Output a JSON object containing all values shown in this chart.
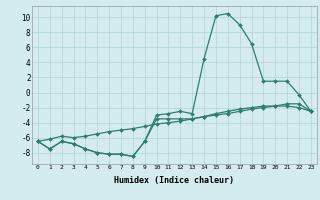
{
  "xlabel": "Humidex (Indice chaleur)",
  "x_values": [
    0,
    1,
    2,
    3,
    4,
    5,
    6,
    7,
    8,
    9,
    10,
    11,
    12,
    13,
    14,
    15,
    16,
    17,
    18,
    19,
    20,
    21,
    22,
    23
  ],
  "line1_y": [
    -6.5,
    -7.5,
    -6.5,
    -6.8,
    -7.5,
    -8.0,
    -8.2,
    -8.2,
    -8.5,
    -6.5,
    -3.0,
    -2.8,
    -2.5,
    -2.8,
    4.5,
    10.2,
    10.5,
    9.0,
    6.5,
    1.5,
    1.5,
    1.5,
    -0.3,
    -2.5
  ],
  "line2_y": [
    -6.5,
    -7.5,
    -6.5,
    -6.8,
    -7.5,
    -8.0,
    -8.2,
    -8.2,
    -8.5,
    -6.5,
    -3.5,
    -3.5,
    -3.5,
    -3.5,
    -3.2,
    -2.8,
    -2.5,
    -2.2,
    -2.0,
    -1.8,
    -1.8,
    -1.8,
    -2.0,
    -2.5
  ],
  "line3_y": [
    -6.5,
    -6.2,
    -5.8,
    -6.0,
    -5.8,
    -5.5,
    -5.2,
    -5.0,
    -4.8,
    -4.5,
    -4.2,
    -4.0,
    -3.8,
    -3.5,
    -3.2,
    -3.0,
    -2.8,
    -2.5,
    -2.2,
    -2.0,
    -1.8,
    -1.5,
    -1.5,
    -2.5
  ],
  "line_color": "#2e7d6e",
  "bg_color": "#d4ecee",
  "grid_color": "#aed4d6",
  "ylim": [
    -9.5,
    11.5
  ],
  "yticks": [
    -8,
    -6,
    -4,
    -2,
    0,
    2,
    4,
    6,
    8,
    10
  ],
  "marker": "D",
  "markersize": 2.0,
  "linewidth": 0.9
}
